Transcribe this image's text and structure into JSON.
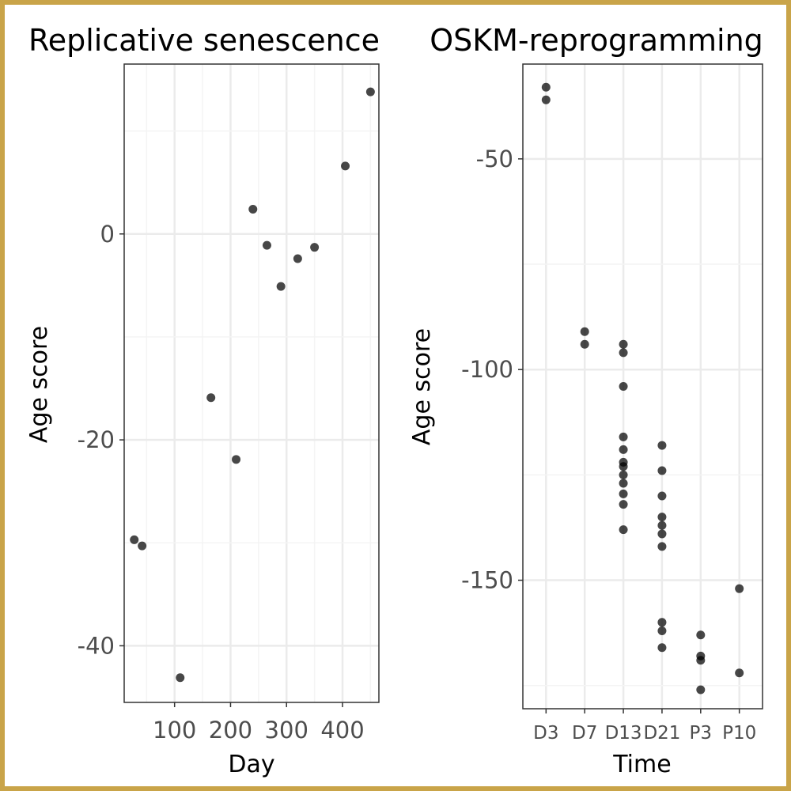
{
  "chart_data": [
    {
      "type": "scatter",
      "title": "Replicative senescence",
      "xlabel": "Day",
      "ylabel": "Age score",
      "xlim": [
        10,
        465
      ],
      "ylim": [
        -45.5,
        16.5
      ],
      "xticks": [
        100,
        200,
        300,
        400
      ],
      "yticks": [
        -40,
        -20,
        0
      ],
      "grid": true,
      "point_color": "#000000",
      "points": [
        {
          "x": 28,
          "y": -29.7
        },
        {
          "x": 42,
          "y": -30.3
        },
        {
          "x": 110,
          "y": -43.1
        },
        {
          "x": 165,
          "y": -15.9
        },
        {
          "x": 210,
          "y": -21.9
        },
        {
          "x": 240,
          "y": 2.4
        },
        {
          "x": 265,
          "y": -1.1
        },
        {
          "x": 290,
          "y": -5.1
        },
        {
          "x": 320,
          "y": -2.4
        },
        {
          "x": 350,
          "y": -1.3
        },
        {
          "x": 405,
          "y": 6.6
        },
        {
          "x": 450,
          "y": 13.8
        }
      ]
    },
    {
      "type": "scatter",
      "title": "OSKM-reprogramming",
      "xlabel": "Time",
      "ylabel": "Age score",
      "categories": [
        "D3",
        "D7",
        "D13",
        "D21",
        "P3",
        "P10"
      ],
      "ylim": [
        -180.5,
        -27.5
      ],
      "yticks": [
        -150,
        -100,
        -50
      ],
      "grid": true,
      "point_color": "#000000",
      "points": [
        {
          "x": "D3",
          "y": -33
        },
        {
          "x": "D3",
          "y": -36
        },
        {
          "x": "D7",
          "y": -91
        },
        {
          "x": "D7",
          "y": -94
        },
        {
          "x": "D13",
          "y": -94
        },
        {
          "x": "D13",
          "y": -96
        },
        {
          "x": "D13",
          "y": -104
        },
        {
          "x": "D13",
          "y": -116
        },
        {
          "x": "D13",
          "y": -119
        },
        {
          "x": "D13",
          "y": -122
        },
        {
          "x": "D13",
          "y": -123
        },
        {
          "x": "D13",
          "y": -125
        },
        {
          "x": "D13",
          "y": -127
        },
        {
          "x": "D13",
          "y": -129.5
        },
        {
          "x": "D13",
          "y": -132
        },
        {
          "x": "D13",
          "y": -138
        },
        {
          "x": "D21",
          "y": -118
        },
        {
          "x": "D21",
          "y": -124
        },
        {
          "x": "D21",
          "y": -130
        },
        {
          "x": "D21",
          "y": -135
        },
        {
          "x": "D21",
          "y": -137
        },
        {
          "x": "D21",
          "y": -139
        },
        {
          "x": "D21",
          "y": -142
        },
        {
          "x": "D21",
          "y": -160
        },
        {
          "x": "D21",
          "y": -162
        },
        {
          "x": "D21",
          "y": -166
        },
        {
          "x": "P3",
          "y": -163
        },
        {
          "x": "P3",
          "y": -168
        },
        {
          "x": "P3",
          "y": -169
        },
        {
          "x": "P3",
          "y": -176
        },
        {
          "x": "P10",
          "y": -152
        },
        {
          "x": "P10",
          "y": -172
        }
      ]
    }
  ]
}
